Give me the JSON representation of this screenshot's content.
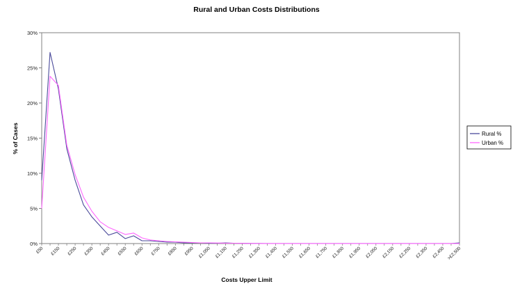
{
  "chart_data": {
    "type": "line",
    "title": "Rural and Urban Costs Distributions",
    "xlabel": "Costs Upper Limit",
    "ylabel": "% of Cases",
    "ylim": [
      0,
      30
    ],
    "y_ticks": [
      "0%",
      "5%",
      "10%",
      "15%",
      "20%",
      "25%",
      "30%"
    ],
    "y_tick_values": [
      0,
      5,
      10,
      15,
      20,
      25,
      30
    ],
    "x_ticks": [
      "£50",
      "£150",
      "£250",
      "£350",
      "£450",
      "£550",
      "£650",
      "£750",
      "£850",
      "£950",
      "£1,050",
      "£1,150",
      "£1,250",
      "£1,350",
      "£1,450",
      "£1,550",
      "£1,650",
      "£1,750",
      "£1,850",
      "£1,950",
      "£2,050",
      "£2,150",
      "£2,250",
      "£2,350",
      "£2,450",
      ">£2,500"
    ],
    "x_tick_positions": [
      0,
      2,
      4,
      6,
      8,
      10,
      12,
      14,
      16,
      18,
      20,
      22,
      24,
      26,
      28,
      30,
      32,
      34,
      36,
      38,
      40,
      42,
      44,
      46,
      48,
      50
    ],
    "x_count": 51,
    "grid": false,
    "legend_position": "right",
    "series": [
      {
        "name": "Rural %",
        "color": "#4a4a9a",
        "values": [
          9.0,
          27.2,
          22.0,
          13.5,
          9.0,
          5.5,
          3.8,
          2.5,
          1.2,
          1.6,
          0.7,
          1.1,
          0.4,
          0.4,
          0.3,
          0.2,
          0.2,
          0.1,
          0.1,
          0.1,
          0.05,
          0.05,
          0.1,
          0.05,
          0.05,
          0.02,
          0.02,
          0.01,
          0.01,
          0.01,
          0.01,
          0.01,
          0.01,
          0.01,
          0.01,
          0.01,
          0.01,
          0.01,
          0.01,
          0.01,
          0.01,
          0.01,
          0.01,
          0.01,
          0.01,
          0.01,
          0.01,
          0.01,
          0.01,
          0.01,
          0.1
        ]
      },
      {
        "name": "Urban %",
        "color": "#ff66ff",
        "values": [
          5.0,
          23.8,
          22.5,
          14.0,
          9.8,
          6.6,
          4.6,
          3.1,
          2.3,
          1.8,
          1.3,
          1.5,
          0.8,
          0.5,
          0.4,
          0.3,
          0.25,
          0.2,
          0.15,
          0.1,
          0.1,
          0.08,
          0.05,
          0.05,
          0.03,
          0.02,
          0.01,
          0.01,
          0.01,
          0.01,
          0.01,
          0.01,
          0.01,
          0.01,
          0.01,
          0.01,
          0.01,
          0.01,
          0.01,
          0.01,
          0.01,
          0.01,
          0.01,
          0.01,
          0.01,
          0.01,
          0.01,
          0.01,
          0.01,
          0.01,
          0.01
        ]
      }
    ]
  }
}
